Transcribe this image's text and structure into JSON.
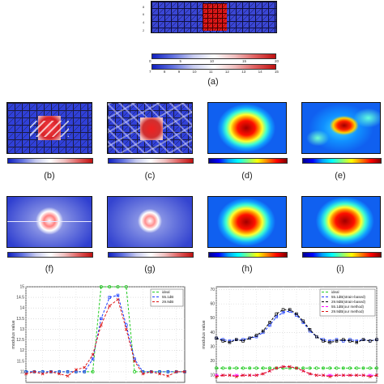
{
  "panel_a": {
    "y_ticks": [
      "8",
      "6",
      "4",
      "2"
    ],
    "scale1": [
      "0",
      "5",
      "10",
      "15",
      "20"
    ],
    "scale2": [
      "7",
      "8",
      "9",
      "10",
      "11",
      "12",
      "13",
      "14",
      "15"
    ],
    "caption": "(a)"
  },
  "captions": {
    "b": "(b)",
    "c": "(c)",
    "d": "(d)",
    "e": "(e)",
    "f": "(f)",
    "g": "(g)",
    "h": "(h)",
    "i": "(i)"
  },
  "colors": {
    "ideal": "#22cc22",
    "blue_series": "#1a3cff",
    "red_series": "#dd1111",
    "magenta_series": "#ff00ff",
    "black_series": "#000000"
  },
  "chart_data": [
    {
      "type": "line",
      "ylabel": "modulus value",
      "ylim": [
        10.5,
        15
      ],
      "y_ticks": [
        "15",
        "14.5",
        "14",
        "13.5",
        "13",
        "12.5",
        "12",
        "11.5",
        "11"
      ],
      "x": [
        1,
        2,
        3,
        4,
        5,
        6,
        7,
        8,
        9,
        10,
        11,
        12,
        13,
        14,
        15,
        16,
        17,
        18,
        19,
        20
      ],
      "series": [
        {
          "name": "ideal",
          "values": [
            11,
            11,
            11,
            11,
            11,
            11,
            11,
            11,
            11,
            15,
            15,
            15,
            15,
            11,
            11,
            11,
            11,
            11,
            11,
            11
          ]
        },
        {
          "name": "55.1dB",
          "values": [
            11,
            11,
            11,
            11,
            11,
            11,
            11,
            11,
            11.6,
            13.5,
            14.5,
            14.6,
            13.2,
            11.6,
            11,
            11,
            11,
            11,
            11,
            11
          ]
        },
        {
          "name": "29.9dB",
          "values": [
            10.9,
            11,
            10.9,
            11,
            10.9,
            10.8,
            11.1,
            11.2,
            11.8,
            13.2,
            14.1,
            14.4,
            13.0,
            11.5,
            10.9,
            11,
            10.9,
            10.8,
            11.0,
            11
          ]
        }
      ],
      "grid": true,
      "legend": "top-right"
    },
    {
      "type": "line",
      "ylabel": "modulus value",
      "y_ticks": [
        "70",
        "60",
        "50",
        "40",
        "30",
        "20",
        "10"
      ],
      "ylim": [
        5,
        72
      ],
      "x": [
        1,
        2,
        3,
        4,
        5,
        6,
        7,
        8,
        9,
        10,
        11,
        12,
        13,
        14,
        15,
        16,
        17,
        18,
        19,
        20,
        21,
        22,
        23,
        24,
        25
      ],
      "series": [
        {
          "name": "ideal",
          "values": [
            15,
            15,
            15,
            15,
            15,
            15,
            15,
            15,
            15,
            15,
            15,
            15,
            15,
            15,
            15,
            15,
            15,
            15,
            15,
            15,
            15,
            15,
            15,
            15,
            15
          ]
        },
        {
          "name": "55.1dB(strain-based)",
          "values": [
            36,
            35,
            34,
            35,
            35,
            36,
            37,
            40,
            45,
            51,
            54,
            55,
            52,
            47,
            41,
            37,
            35,
            34,
            35,
            34,
            35,
            34,
            35,
            34,
            35
          ]
        },
        {
          "name": "29.9dB(strain-based)",
          "values": [
            36,
            34,
            33,
            35,
            34,
            36,
            38,
            41,
            47,
            53,
            56,
            56,
            53,
            48,
            42,
            37,
            34,
            33,
            34,
            35,
            34,
            33,
            35,
            34,
            35
          ]
        },
        {
          "name": "55.1dB(our method)",
          "values": [
            10,
            10,
            10,
            10,
            10,
            10,
            10,
            11,
            13,
            15,
            16,
            16,
            15,
            13,
            11,
            10,
            10,
            10,
            10,
            10,
            10,
            10,
            10,
            10,
            10
          ]
        },
        {
          "name": "29.9dB(our method)",
          "values": [
            9,
            10,
            10,
            9,
            10,
            10,
            10,
            11,
            13,
            15,
            16,
            16,
            15,
            13,
            11,
            10,
            10,
            9,
            10,
            10,
            10,
            10,
            10,
            9,
            10
          ]
        }
      ],
      "grid": true,
      "legend": "top-right"
    }
  ]
}
